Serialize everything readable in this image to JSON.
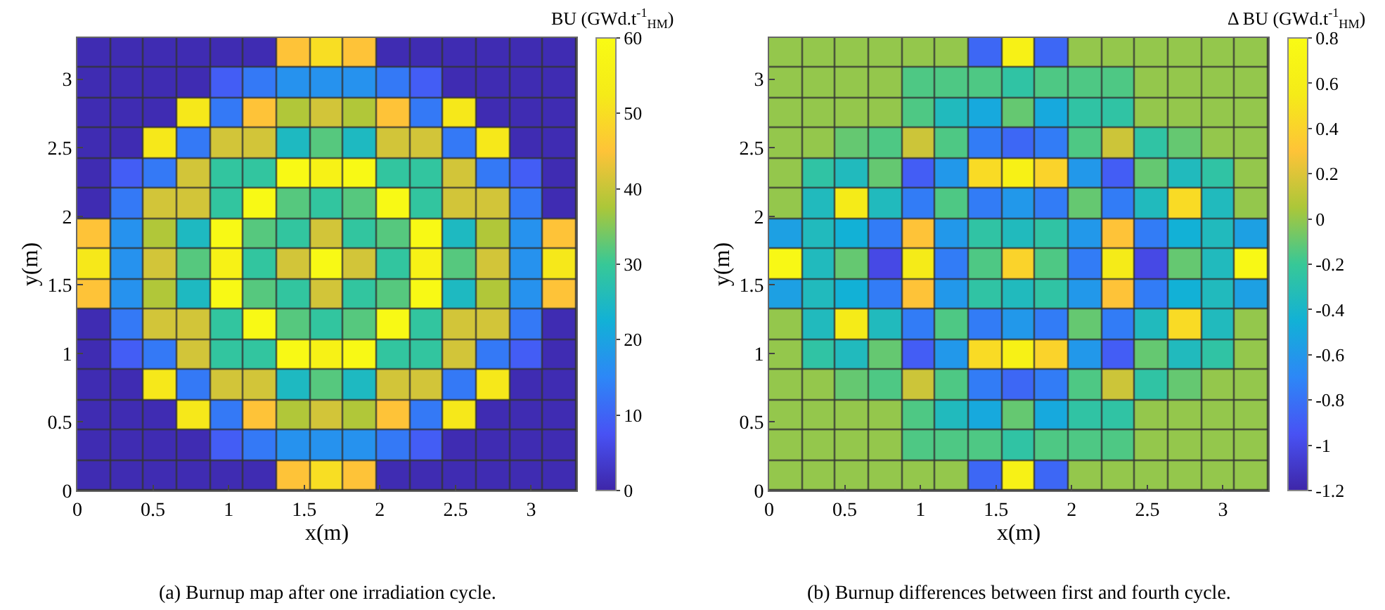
{
  "chart_data": [
    {
      "type": "heatmap",
      "xlabel": "x(m)",
      "ylabel": "y(m)",
      "clabel": "BU (GWd.t$^{-1}$$_{HM}$)",
      "annotations": [
        "(a) Burnup map after one irradiation cycle."
      ],
      "x": [
        0.11,
        0.33,
        0.55,
        0.77,
        0.99,
        1.21,
        1.43,
        1.65,
        1.87,
        2.09,
        2.31,
        2.53,
        2.75,
        2.97,
        3.19
      ],
      "y": [
        3.19,
        2.97,
        2.75,
        2.53,
        2.31,
        2.09,
        1.87,
        1.65,
        1.43,
        1.21,
        0.99,
        0.77,
        0.55,
        0.33,
        0.11
      ],
      "xlim": [
        0,
        3.3
      ],
      "xticks": [
        0,
        0.5,
        1,
        1.5,
        2,
        2.5,
        3
      ],
      "ylim": [
        0,
        3.3
      ],
      "yticks": [
        0,
        0.5,
        1,
        1.5,
        2,
        2.5,
        3
      ],
      "clim": [
        0,
        60
      ],
      "cticks": [
        0,
        10,
        20,
        30,
        40,
        50,
        60
      ],
      "cells": [
        [
          1,
          1,
          1,
          1,
          1,
          1,
          45,
          50,
          45,
          1,
          1,
          1,
          1,
          1,
          1
        ],
        [
          1,
          1,
          1,
          1,
          9,
          13,
          17,
          17,
          17,
          13,
          9,
          1,
          1,
          1,
          1
        ],
        [
          1,
          1,
          1,
          52,
          13,
          45,
          38,
          41,
          38,
          45,
          13,
          52,
          1,
          1,
          1
        ],
        [
          1,
          1,
          52,
          13,
          41,
          41,
          25,
          32,
          25,
          41,
          41,
          13,
          52,
          1,
          1
        ],
        [
          1,
          9,
          13,
          41,
          29,
          29,
          59,
          56,
          59,
          29,
          29,
          41,
          13,
          9,
          1
        ],
        [
          1,
          13,
          41,
          41,
          29,
          59,
          32,
          29,
          32,
          59,
          29,
          41,
          41,
          13,
          1
        ],
        [
          45,
          17,
          38,
          25,
          59,
          32,
          29,
          41,
          29,
          32,
          59,
          25,
          38,
          17,
          45
        ],
        [
          52,
          17,
          41,
          32,
          56,
          29,
          41,
          59,
          41,
          29,
          56,
          32,
          41,
          17,
          52
        ],
        [
          45,
          17,
          38,
          25,
          59,
          32,
          29,
          41,
          29,
          32,
          59,
          25,
          38,
          17,
          45
        ],
        [
          1,
          13,
          41,
          41,
          29,
          59,
          32,
          29,
          32,
          59,
          29,
          41,
          41,
          13,
          1
        ],
        [
          1,
          9,
          13,
          41,
          29,
          29,
          59,
          56,
          59,
          29,
          29,
          41,
          13,
          9,
          1
        ],
        [
          1,
          1,
          52,
          13,
          41,
          41,
          25,
          32,
          25,
          41,
          41,
          13,
          52,
          1,
          1
        ],
        [
          1,
          1,
          1,
          52,
          13,
          45,
          38,
          41,
          38,
          45,
          13,
          52,
          1,
          1,
          1
        ],
        [
          1,
          1,
          1,
          1,
          9,
          13,
          17,
          17,
          17,
          13,
          9,
          1,
          1,
          1,
          1
        ],
        [
          1,
          1,
          1,
          1,
          1,
          1,
          45,
          50,
          45,
          1,
          1,
          1,
          1,
          1,
          1
        ]
      ]
    },
    {
      "type": "heatmap",
      "xlabel": "x(m)",
      "ylabel": "y(m)",
      "clabel": "Δ BU (GWd.t$^{-1}$$_{HM}$)",
      "annotations": [
        "(b) Burnup differences between first and fourth cycle."
      ],
      "x": [
        0.11,
        0.33,
        0.55,
        0.77,
        0.99,
        1.21,
        1.43,
        1.65,
        1.87,
        2.09,
        2.31,
        2.53,
        2.75,
        2.97,
        3.19
      ],
      "y": [
        3.19,
        2.97,
        2.75,
        2.53,
        2.31,
        2.09,
        1.87,
        1.65,
        1.43,
        1.21,
        0.99,
        0.77,
        0.55,
        0.33,
        0.11
      ],
      "xlim": [
        0,
        3.3
      ],
      "xticks": [
        0,
        0.5,
        1,
        1.5,
        2,
        2.5,
        3
      ],
      "ylim": [
        0,
        3.3
      ],
      "yticks": [
        0,
        0.5,
        1,
        1.5,
        2,
        2.5,
        3
      ],
      "clim": [
        -1.2,
        0.8
      ],
      "cticks": [
        -1.2,
        -1,
        -0.8,
        -0.6,
        -0.4,
        -0.2,
        0,
        0.2,
        0.4,
        0.6,
        0.8
      ],
      "cells": [
        [
          0,
          0,
          0,
          0,
          0,
          0,
          -0.85,
          0.65,
          -0.85,
          0,
          0,
          0,
          0,
          0,
          0
        ],
        [
          0,
          0,
          0,
          0,
          -0.15,
          -0.15,
          -0.15,
          -0.25,
          -0.15,
          -0.15,
          -0.15,
          0,
          0,
          0,
          0
        ],
        [
          0,
          0,
          0,
          0,
          -0.15,
          -0.35,
          -0.5,
          -0.1,
          -0.5,
          -0.25,
          -0.25,
          0,
          0,
          0,
          0
        ],
        [
          0,
          0,
          -0.1,
          -0.15,
          0.15,
          -0.15,
          -0.75,
          -0.85,
          -0.75,
          -0.15,
          0.15,
          -0.25,
          -0.1,
          0,
          0
        ],
        [
          0,
          -0.25,
          -0.35,
          -0.1,
          -0.9,
          -0.6,
          0.45,
          0.65,
          0.4,
          -0.6,
          -0.9,
          -0.1,
          -0.35,
          -0.25,
          0
        ],
        [
          0,
          -0.35,
          0.55,
          -0.35,
          -0.75,
          -0.15,
          -0.75,
          -0.6,
          -0.75,
          -0.1,
          -0.75,
          -0.35,
          0.45,
          -0.35,
          0
        ],
        [
          -0.55,
          -0.35,
          -0.45,
          -0.75,
          0.3,
          -0.6,
          -0.25,
          -0.35,
          -0.25,
          -0.6,
          0.3,
          -0.75,
          -0.45,
          -0.35,
          -0.55
        ],
        [
          0.75,
          -0.35,
          -0.1,
          -1,
          0.55,
          -0.75,
          -0.15,
          0.4,
          -0.15,
          -0.75,
          0.55,
          -1,
          -0.1,
          -0.35,
          0.75
        ],
        [
          -0.55,
          -0.35,
          -0.45,
          -0.75,
          0.3,
          -0.6,
          -0.25,
          -0.35,
          -0.25,
          -0.6,
          0.3,
          -0.75,
          -0.45,
          -0.35,
          -0.55
        ],
        [
          0,
          -0.35,
          0.55,
          -0.35,
          -0.75,
          -0.15,
          -0.75,
          -0.6,
          -0.75,
          -0.1,
          -0.75,
          -0.35,
          0.45,
          -0.35,
          0
        ],
        [
          0,
          -0.25,
          -0.35,
          -0.1,
          -0.9,
          -0.6,
          0.45,
          0.65,
          0.4,
          -0.6,
          -0.9,
          -0.1,
          -0.35,
          -0.25,
          0
        ],
        [
          0,
          0,
          -0.1,
          -0.15,
          0.15,
          -0.15,
          -0.75,
          -0.85,
          -0.75,
          -0.15,
          0.15,
          -0.25,
          -0.1,
          0,
          0
        ],
        [
          0,
          0,
          0,
          0,
          -0.15,
          -0.35,
          -0.5,
          -0.1,
          -0.5,
          -0.25,
          -0.25,
          0,
          0,
          0,
          0
        ],
        [
          0,
          0,
          0,
          0,
          -0.15,
          -0.15,
          -0.15,
          -0.25,
          -0.15,
          -0.15,
          -0.15,
          0,
          0,
          0,
          0
        ],
        [
          0,
          0,
          0,
          0,
          0,
          0,
          -0.85,
          0.65,
          -0.85,
          0,
          0,
          0,
          0,
          0,
          0
        ]
      ]
    }
  ]
}
